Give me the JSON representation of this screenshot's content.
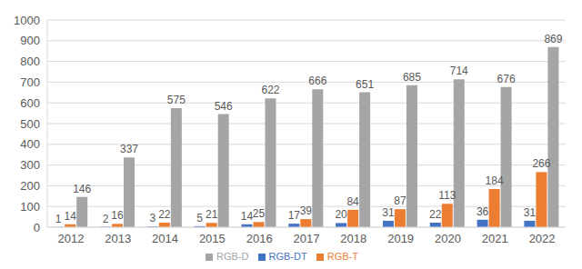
{
  "chart_data": {
    "type": "bar",
    "categories": [
      "2012",
      "2013",
      "2014",
      "2015",
      "2016",
      "2017",
      "2018",
      "2019",
      "2020",
      "2021",
      "2022"
    ],
    "series": [
      {
        "name": "RGB-DT",
        "color": "#4472c4",
        "values": [
          1,
          2,
          3,
          5,
          14,
          17,
          20,
          31,
          22,
          36,
          31
        ]
      },
      {
        "name": "RGB-T",
        "color": "#ed7d31",
        "values": [
          14,
          16,
          22,
          21,
          25,
          39,
          84,
          87,
          113,
          184,
          266
        ]
      },
      {
        "name": "RGB-D",
        "color": "#a5a5a5",
        "values": [
          146,
          337,
          575,
          546,
          622,
          666,
          651,
          685,
          714,
          676,
          869
        ]
      }
    ],
    "ylim": [
      0,
      1000
    ],
    "yticks": [
      0,
      100,
      200,
      300,
      400,
      500,
      600,
      700,
      800,
      900,
      1000
    ],
    "grid": true,
    "legend": "bottom",
    "data_labels": true
  }
}
